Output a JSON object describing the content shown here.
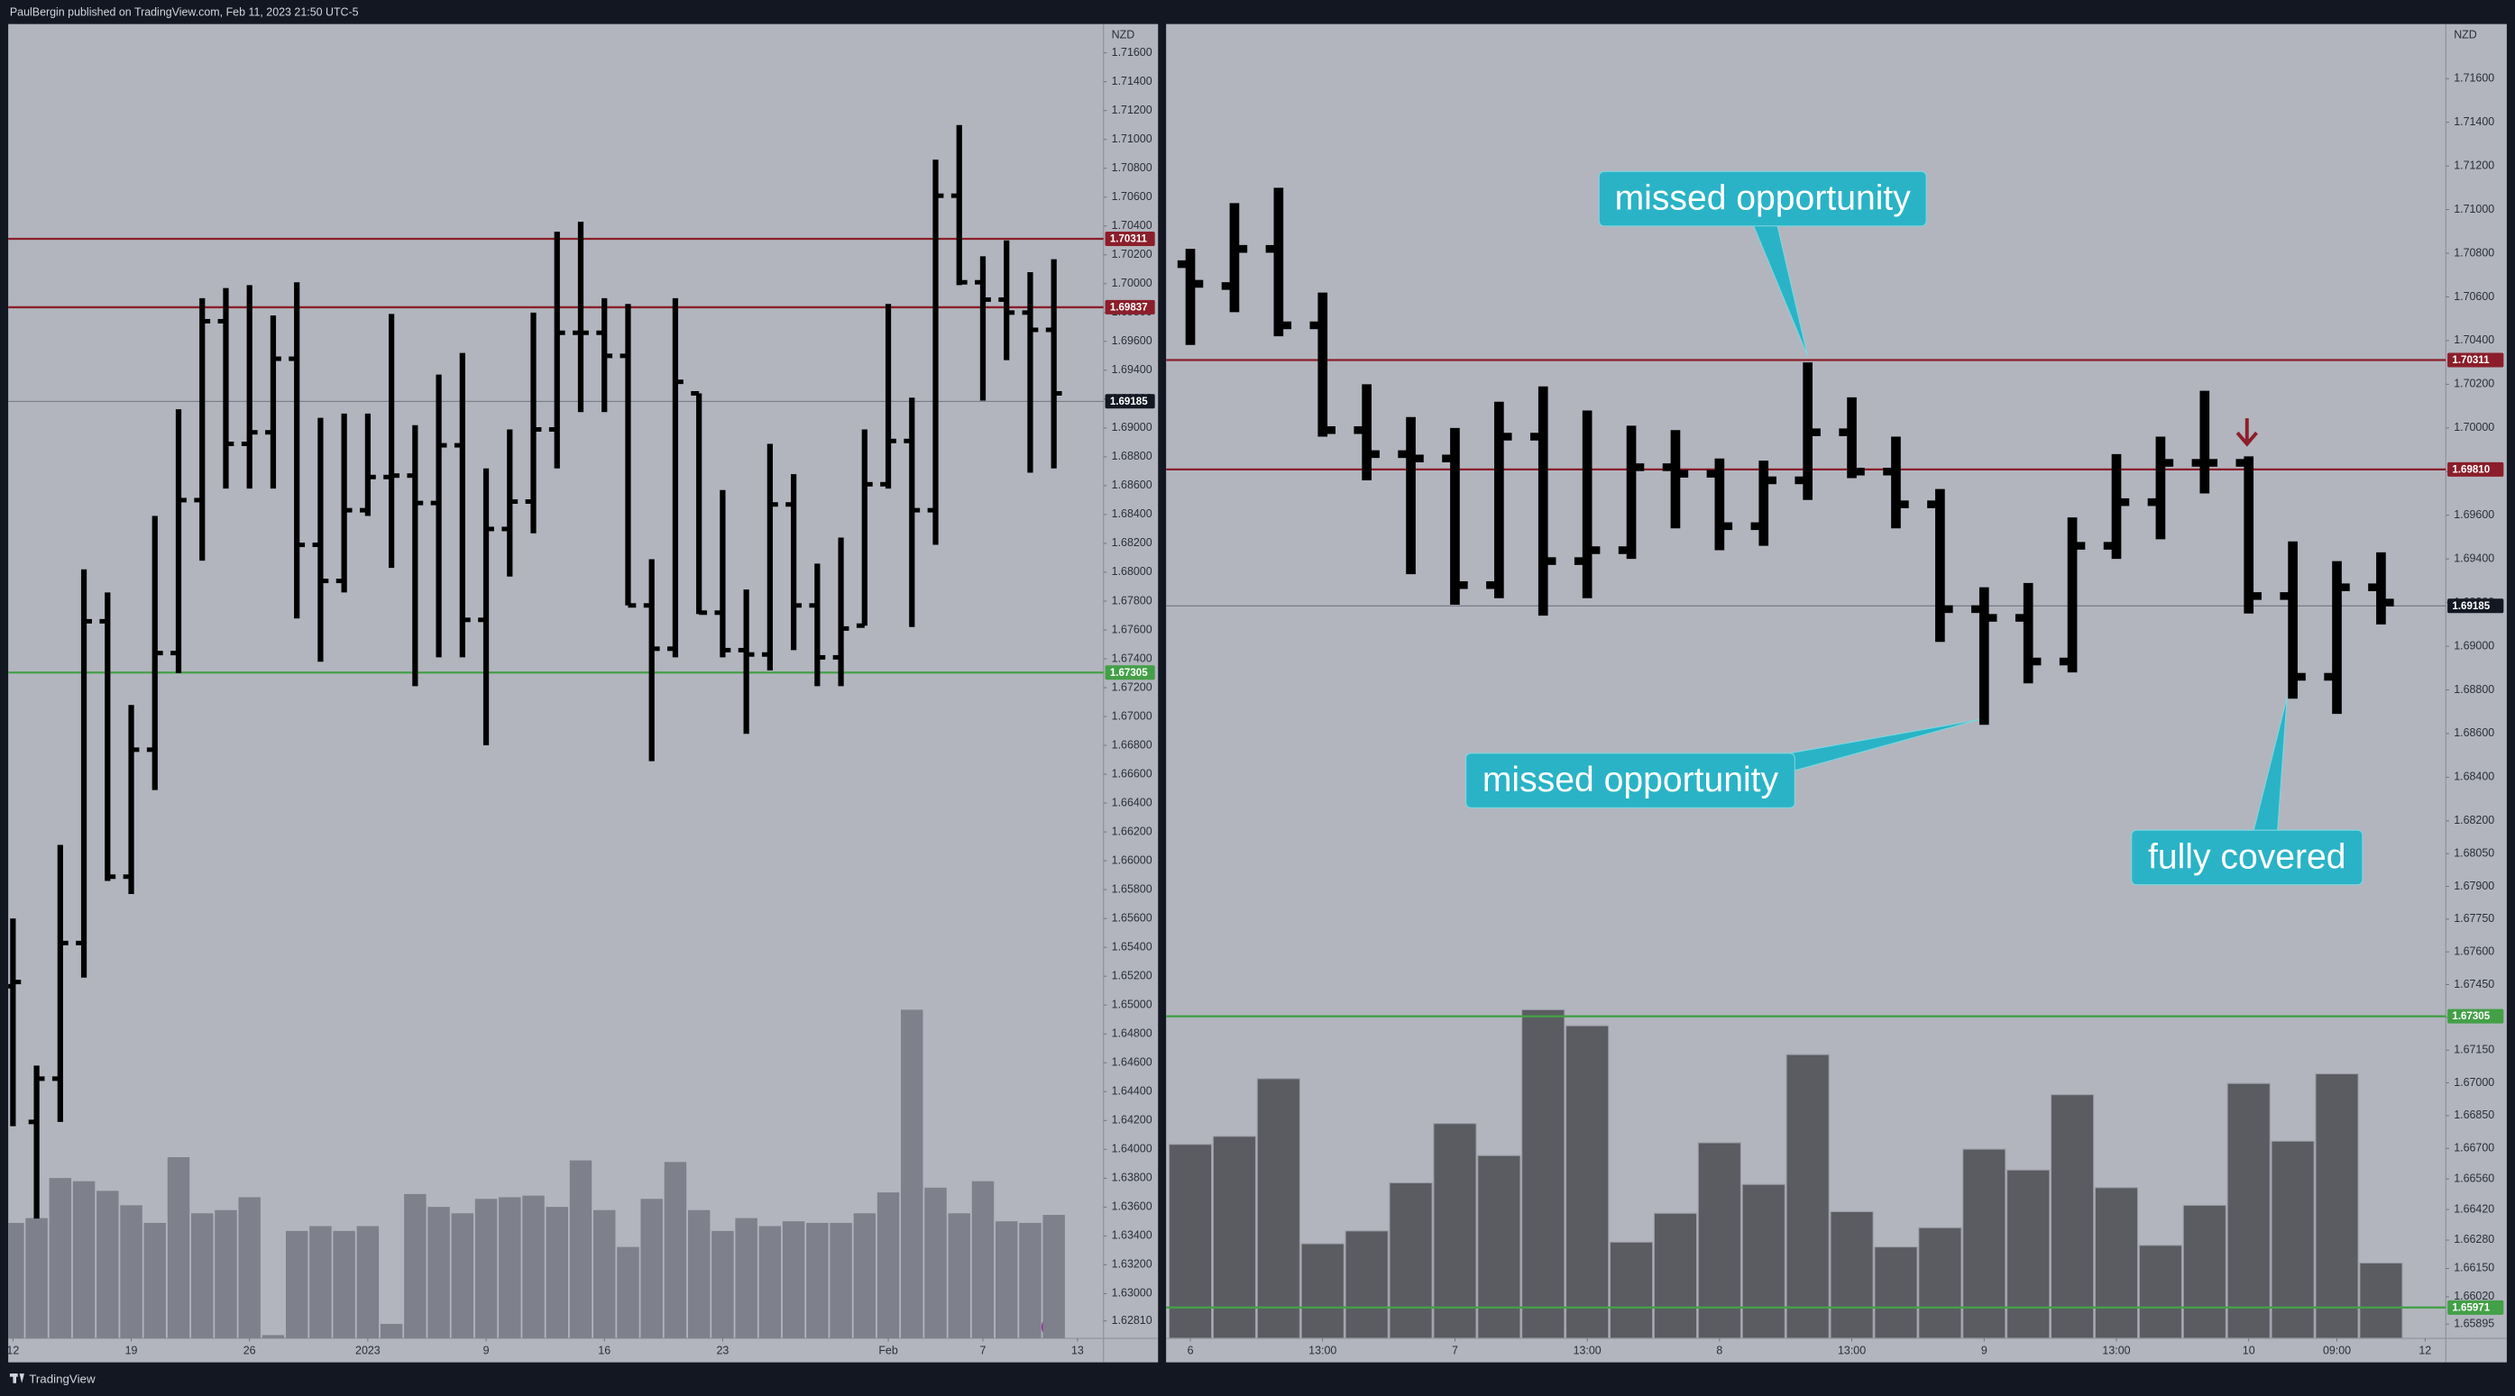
{
  "header": "PaulBergin published on TradingView.com, Feb 11, 2023 21:50 UTC-5",
  "footer": "TradingView",
  "chart_data": [
    {
      "type": "ohlc",
      "currency": "NZD",
      "color": "#000000",
      "volume_color": "#7e808b",
      "xlim": [
        -0.2,
        46.1
      ],
      "ylim": [
        1.6269,
        1.718
      ],
      "xticks": [
        {
          "value": 0,
          "label": "12"
        },
        {
          "value": 5,
          "label": "19"
        },
        {
          "value": 10,
          "label": "26"
        },
        {
          "value": 15,
          "label": "2023"
        },
        {
          "value": 20,
          "label": "9"
        },
        {
          "value": 25,
          "label": "16"
        },
        {
          "value": 30,
          "label": "23"
        },
        {
          "value": 37,
          "label": "Feb"
        },
        {
          "value": 41,
          "label": "7"
        },
        {
          "value": 45,
          "label": "13"
        }
      ],
      "yticks": [
        {
          "value": 1.716,
          "label": "1.71600"
        },
        {
          "value": 1.714,
          "label": "1.71400"
        },
        {
          "value": 1.712,
          "label": "1.71200"
        },
        {
          "value": 1.71,
          "label": "1.71000"
        },
        {
          "value": 1.708,
          "label": "1.70800"
        },
        {
          "value": 1.706,
          "label": "1.70600"
        },
        {
          "value": 1.704,
          "label": "1.70400"
        },
        {
          "value": 1.702,
          "label": "1.70200"
        },
        {
          "value": 1.7,
          "label": "1.70000"
        },
        {
          "value": 1.698,
          "label": "1.69800"
        },
        {
          "value": 1.696,
          "label": "1.69600"
        },
        {
          "value": 1.694,
          "label": "1.69400"
        },
        {
          "value": 1.692,
          "label": "1.69200"
        },
        {
          "value": 1.69,
          "label": "1.69000"
        },
        {
          "value": 1.688,
          "label": "1.68800"
        },
        {
          "value": 1.686,
          "label": "1.68600"
        },
        {
          "value": 1.684,
          "label": "1.68400"
        },
        {
          "value": 1.682,
          "label": "1.68200"
        },
        {
          "value": 1.68,
          "label": "1.68000"
        },
        {
          "value": 1.678,
          "label": "1.67800"
        },
        {
          "value": 1.676,
          "label": "1.67600"
        },
        {
          "value": 1.674,
          "label": "1.67400"
        },
        {
          "value": 1.672,
          "label": "1.67200"
        },
        {
          "value": 1.67,
          "label": "1.67000"
        },
        {
          "value": 1.668,
          "label": "1.66800"
        },
        {
          "value": 1.666,
          "label": "1.66600"
        },
        {
          "value": 1.664,
          "label": "1.66400"
        },
        {
          "value": 1.662,
          "label": "1.66200"
        },
        {
          "value": 1.66,
          "label": "1.66000"
        },
        {
          "value": 1.658,
          "label": "1.65800"
        },
        {
          "value": 1.656,
          "label": "1.65600"
        },
        {
          "value": 1.654,
          "label": "1.65400"
        },
        {
          "value": 1.652,
          "label": "1.65200"
        },
        {
          "value": 1.65,
          "label": "1.65000"
        },
        {
          "value": 1.648,
          "label": "1.64800"
        },
        {
          "value": 1.646,
          "label": "1.64600"
        },
        {
          "value": 1.644,
          "label": "1.64400"
        },
        {
          "value": 1.642,
          "label": "1.64200"
        },
        {
          "value": 1.64,
          "label": "1.64000"
        },
        {
          "value": 1.638,
          "label": "1.63800"
        },
        {
          "value": 1.636,
          "label": "1.63600"
        },
        {
          "value": 1.634,
          "label": "1.63400"
        },
        {
          "value": 1.632,
          "label": "1.63200"
        },
        {
          "value": 1.63,
          "label": "1.63000"
        },
        {
          "value": 1.6281,
          "label": "1.62810"
        }
      ],
      "open": [
        1.6513,
        1.6419,
        1.6449,
        1.6543,
        1.6766,
        1.6589,
        1.6677,
        1.6744,
        1.685,
        1.6974,
        1.6889,
        1.6897,
        1.6948,
        1.6819,
        1.6794,
        1.6843,
        1.6866,
        1.6867,
        1.6848,
        1.6888,
        1.6767,
        1.683,
        1.6849,
        1.6899,
        1.6966,
        1.6966,
        1.695,
        1.6777,
        1.6747,
        1.6924,
        1.6772,
        1.6746,
        1.6743,
        1.6847,
        1.6777,
        1.6741,
        1.6763,
        1.6861,
        1.6891,
        1.6843,
        1.7061,
        1.7001,
        1.6989,
        1.698,
        1.6968
      ],
      "high": [
        1.656,
        1.6458,
        1.6611,
        1.6802,
        1.6786,
        1.6708,
        1.6839,
        1.6913,
        1.699,
        1.6997,
        1.6999,
        1.6978,
        1.7001,
        1.6907,
        1.691,
        1.691,
        1.6979,
        1.6902,
        1.6937,
        1.6952,
        1.6872,
        1.6899,
        1.698,
        1.7036,
        1.7043,
        1.699,
        1.6986,
        1.6809,
        1.699,
        1.6924,
        1.6857,
        1.6788,
        1.6889,
        1.6868,
        1.6806,
        1.6824,
        1.6899,
        1.6986,
        1.6921,
        1.7086,
        1.711,
        1.7019,
        1.703,
        1.7008,
        1.7017
      ],
      "low": [
        1.6416,
        1.6352,
        1.6419,
        1.6519,
        1.6586,
        1.6577,
        1.6649,
        1.673,
        1.6808,
        1.6858,
        1.6858,
        1.6858,
        1.6768,
        1.6738,
        1.6786,
        1.6839,
        1.6803,
        1.6721,
        1.6741,
        1.6741,
        1.668,
        1.6797,
        1.6827,
        1.6872,
        1.6911,
        1.6911,
        1.6777,
        1.6669,
        1.6741,
        1.6771,
        1.6741,
        1.6688,
        1.6732,
        1.6746,
        1.6721,
        1.6721,
        1.6763,
        1.6858,
        1.6762,
        1.6819,
        1.6999,
        1.6919,
        1.6947,
        1.6869,
        1.6872
      ],
      "close": [
        1.6516,
        1.6449,
        1.6543,
        1.6766,
        1.6589,
        1.6677,
        1.6744,
        1.685,
        1.6974,
        1.6889,
        1.6897,
        1.6948,
        1.6819,
        1.6794,
        1.6843,
        1.6866,
        1.6867,
        1.6848,
        1.6888,
        1.6767,
        1.683,
        1.6849,
        1.6899,
        1.6966,
        1.6966,
        1.695,
        1.6777,
        1.6747,
        1.6932,
        1.6772,
        1.6746,
        1.6743,
        1.6847,
        1.6777,
        1.6741,
        1.6761,
        1.6861,
        1.6891,
        1.6843,
        1.7061,
        1.7001,
        1.6989,
        1.698,
        1.6968,
        1.6924
      ],
      "volume": [
        72,
        75,
        100,
        98,
        92,
        83,
        72,
        113,
        78,
        80,
        88,
        2,
        67,
        70,
        67,
        70,
        9,
        90,
        82,
        78,
        87,
        88,
        89,
        82,
        111,
        80,
        57,
        87,
        110,
        80,
        67,
        75,
        70,
        73,
        72,
        72,
        78,
        91,
        205,
        94,
        78,
        98,
        73,
        72,
        77
      ],
      "levels": [
        {
          "value": 1.70311,
          "color": "#8b1e2a"
        },
        {
          "value": 1.69837,
          "color": "#8b1e2a"
        },
        {
          "value": 1.69185,
          "color": "#131722"
        },
        {
          "value": 1.67305,
          "color": "#43a047"
        }
      ]
    },
    {
      "type": "ohlc",
      "currency": "NZD",
      "color": "#000000",
      "volume_color": "#5b5c61",
      "xlim": [
        -0.55,
        28.47
      ],
      "ylim": [
        1.6583,
        1.7185
      ],
      "xticks": [
        {
          "value": 0,
          "label": "6"
        },
        {
          "value": 3,
          "label": "13:00"
        },
        {
          "value": 6,
          "label": "7"
        },
        {
          "value": 9,
          "label": "13:00"
        },
        {
          "value": 12,
          "label": "8"
        },
        {
          "value": 15,
          "label": "13:00"
        },
        {
          "value": 18,
          "label": "9"
        },
        {
          "value": 21,
          "label": "13:00"
        },
        {
          "value": 24,
          "label": "10"
        },
        {
          "value": 26,
          "label": "09:00"
        },
        {
          "value": 28,
          "label": "12"
        }
      ],
      "yticks": [
        {
          "value": 1.716,
          "label": "1.71600"
        },
        {
          "value": 1.714,
          "label": "1.71400"
        },
        {
          "value": 1.712,
          "label": "1.71200"
        },
        {
          "value": 1.71,
          "label": "1.71000"
        },
        {
          "value": 1.708,
          "label": "1.70800"
        },
        {
          "value": 1.706,
          "label": "1.70600"
        },
        {
          "value": 1.704,
          "label": "1.70400"
        },
        {
          "value": 1.702,
          "label": "1.70200"
        },
        {
          "value": 1.7,
          "label": "1.70000"
        },
        {
          "value": 1.698,
          "label": "1.69800"
        },
        {
          "value": 1.696,
          "label": "1.69600"
        },
        {
          "value": 1.694,
          "label": "1.69400"
        },
        {
          "value": 1.692,
          "label": "1.69200"
        },
        {
          "value": 1.69,
          "label": "1.69000"
        },
        {
          "value": 1.688,
          "label": "1.68800"
        },
        {
          "value": 1.686,
          "label": "1.68600"
        },
        {
          "value": 1.684,
          "label": "1.68400"
        },
        {
          "value": 1.682,
          "label": "1.68200"
        },
        {
          "value": 1.6805,
          "label": "1.68050"
        },
        {
          "value": 1.679,
          "label": "1.67900"
        },
        {
          "value": 1.6775,
          "label": "1.67750"
        },
        {
          "value": 1.676,
          "label": "1.67600"
        },
        {
          "value": 1.6745,
          "label": "1.67450"
        },
        {
          "value": 1.673,
          "label": "1.67300"
        },
        {
          "value": 1.6715,
          "label": "1.67150"
        },
        {
          "value": 1.67,
          "label": "1.67000"
        },
        {
          "value": 1.6685,
          "label": "1.66850"
        },
        {
          "value": 1.667,
          "label": "1.66700"
        },
        {
          "value": 1.6656,
          "label": "1.66560"
        },
        {
          "value": 1.6642,
          "label": "1.66420"
        },
        {
          "value": 1.6628,
          "label": "1.66280"
        },
        {
          "value": 1.6615,
          "label": "1.66150"
        },
        {
          "value": 1.6602,
          "label": "1.66020"
        },
        {
          "value": 1.65895,
          "label": "1.65895"
        }
      ],
      "open": [
        1.7075,
        1.7065,
        1.7082,
        1.7047,
        1.6999,
        1.6988,
        1.6986,
        1.6928,
        1.6996,
        1.6939,
        1.6944,
        1.6982,
        1.6979,
        1.6955,
        1.6976,
        1.6998,
        1.698,
        1.6965,
        1.6917,
        1.6913,
        1.6893,
        1.6946,
        1.6966,
        1.6984,
        1.6984,
        1.6923,
        1.6886,
        1.6927
      ],
      "high": [
        1.7082,
        1.7103,
        1.711,
        1.7062,
        1.702,
        1.7005,
        1.7,
        1.7012,
        1.7019,
        1.7008,
        1.7001,
        1.6999,
        1.6986,
        1.6985,
        1.703,
        1.7014,
        1.6996,
        1.6972,
        1.6927,
        1.6929,
        1.6959,
        1.6988,
        1.6996,
        1.7017,
        1.6987,
        1.6948,
        1.6939,
        1.6943
      ],
      "low": [
        1.7038,
        1.7053,
        1.7042,
        1.6996,
        1.6976,
        1.6933,
        1.6919,
        1.6922,
        1.6914,
        1.6922,
        1.694,
        1.6954,
        1.6944,
        1.6946,
        1.6967,
        1.6977,
        1.6954,
        1.6902,
        1.6864,
        1.6883,
        1.6888,
        1.694,
        1.6949,
        1.697,
        1.6915,
        1.6876,
        1.6869,
        1.691
      ],
      "close": [
        1.7066,
        1.7082,
        1.7047,
        1.6999,
        1.6988,
        1.6986,
        1.6928,
        1.6996,
        1.6939,
        1.6944,
        1.6982,
        1.6979,
        1.6955,
        1.6976,
        1.6998,
        1.698,
        1.6965,
        1.6917,
        1.6913,
        1.6893,
        1.6946,
        1.6966,
        1.6984,
        1.6984,
        1.6923,
        1.6886,
        1.6927,
        1.692
      ],
      "volume": [
        121,
        126,
        162,
        59,
        67,
        97,
        134,
        114,
        205,
        195,
        60,
        78,
        122,
        96,
        177,
        79,
        57,
        69,
        118,
        105,
        152,
        94,
        58,
        83,
        159,
        123,
        165,
        47
      ],
      "levels": [
        {
          "value": 1.70311,
          "color": "#8b1e2a"
        },
        {
          "value": 1.6981,
          "label": "1.69810",
          "color": "#8b1e2a"
        },
        {
          "value": 1.69185,
          "color": "#131722"
        },
        {
          "value": 1.67305,
          "color": "#43a047"
        },
        {
          "value": 1.65971,
          "color": "#43a047"
        }
      ],
      "annotations": [
        "missed opportunity",
        "missed opportunity",
        "fully covered"
      ]
    }
  ]
}
